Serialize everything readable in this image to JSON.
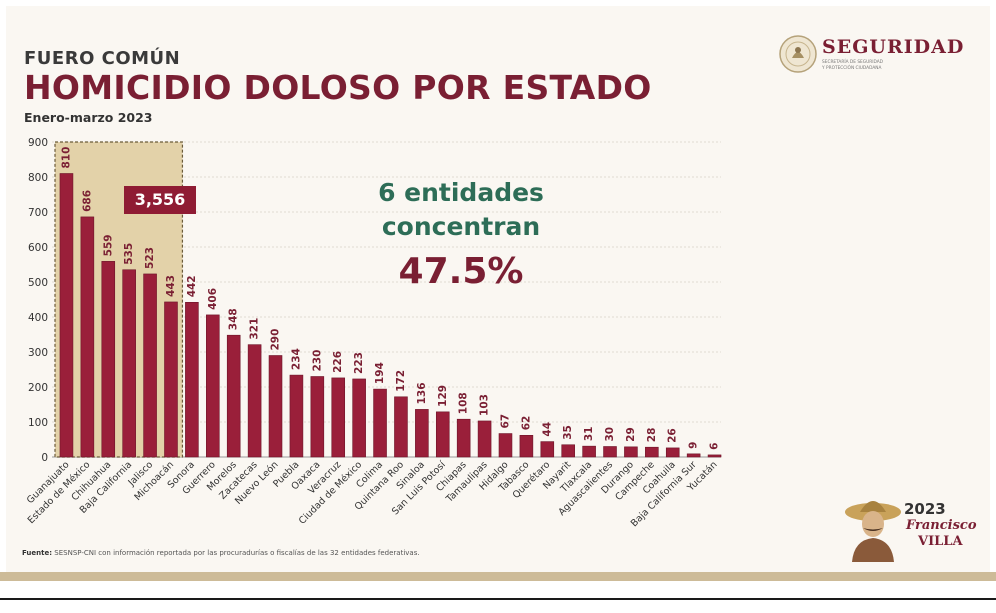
{
  "header": {
    "subtitle": "FUERO COMÚN",
    "title": "HOMICIDIO DOLOSO POR ESTADO",
    "period": "Enero-marzo 2023"
  },
  "brand": {
    "name": "SEGURIDAD",
    "line1": "SECRETARÍA DE SEGURIDAD",
    "line2": "Y PROTECCIÓN CIUDADANA"
  },
  "annotation": {
    "total": "3,556",
    "line1": "6 entidades",
    "line2": "concentran",
    "percent": "47.5%"
  },
  "source": {
    "label": "Fuente:",
    "text": "SESNSP-CNI con información reportada por las procuradurías o fiscalías de las 32 entidades federativas."
  },
  "logo_2023": {
    "year": "2023",
    "name1": "Francisco",
    "name2": "VILLA"
  },
  "colors": {
    "bar": "#9a1f3a",
    "bar_edge": "#6d1528",
    "title": "#7a1f33",
    "highlight_fill": "#e3d2a9",
    "highlight_border": "#6b5b3a",
    "accent_green": "#2d6d57"
  },
  "chart_data": {
    "type": "bar",
    "title": "HOMICIDIO DOLOSO POR ESTADO",
    "xlabel": "",
    "ylabel": "",
    "ylim": [
      0,
      900
    ],
    "yticks": [
      0,
      100,
      200,
      300,
      400,
      500,
      600,
      700,
      800,
      900
    ],
    "grid": true,
    "categories": [
      "Guanajuato",
      "Estado de México",
      "Chihuahua",
      "Baja California",
      "Jalisco",
      "Michoacán",
      "Sonora",
      "Guerrero",
      "Morelos",
      "Zacatecas",
      "Nuevo León",
      "Puebla",
      "Oaxaca",
      "Veracruz",
      "Ciudad de México",
      "Colima",
      "Quintana Roo",
      "Sinaloa",
      "San Luis Potosí",
      "Chiapas",
      "Tamaulipas",
      "Hidalgo",
      "Tabasco",
      "Querétaro",
      "Nayarit",
      "Tlaxcala",
      "Aguascalientes",
      "Durango",
      "Campeche",
      "Coahuila",
      "Baja California Sur",
      "Yucatán"
    ],
    "values": [
      810,
      686,
      559,
      535,
      523,
      443,
      442,
      406,
      348,
      321,
      290,
      234,
      230,
      226,
      223,
      194,
      172,
      136,
      129,
      108,
      103,
      67,
      62,
      44,
      35,
      31,
      30,
      29,
      28,
      26,
      9,
      6
    ],
    "highlight_count": 6
  }
}
